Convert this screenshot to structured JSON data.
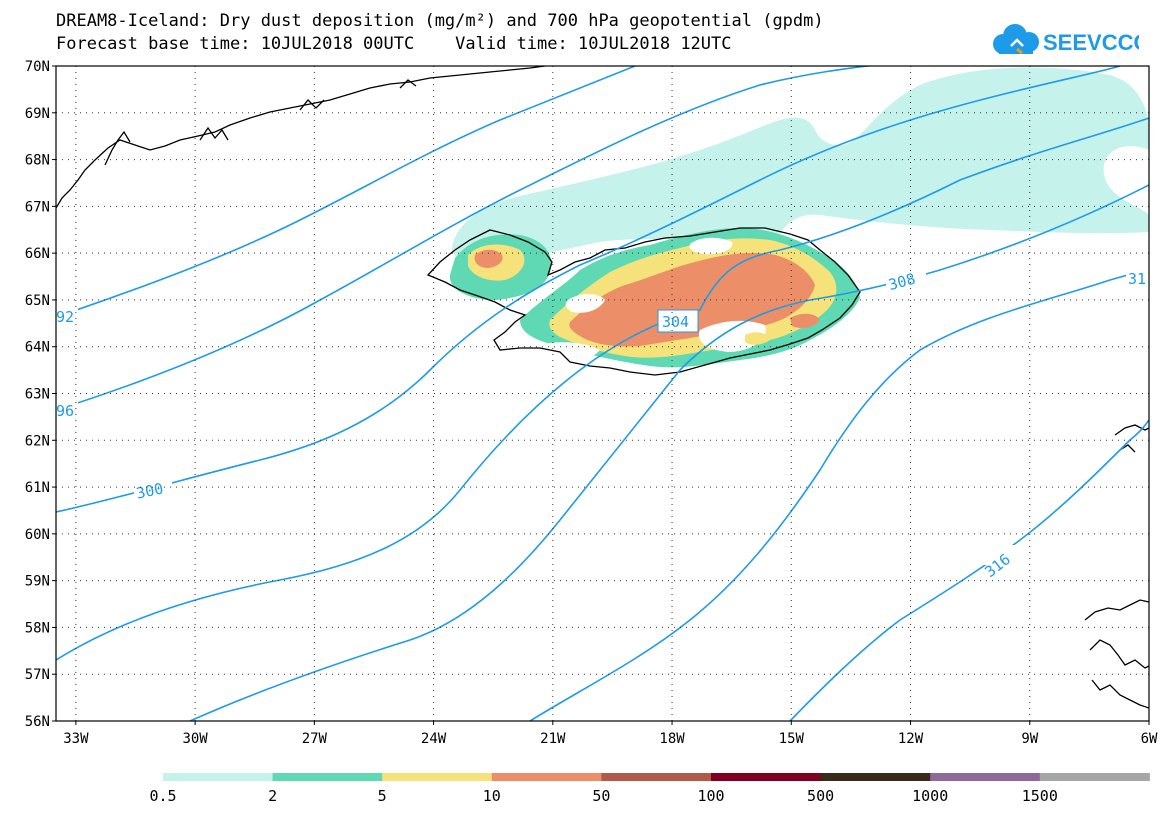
{
  "header": {
    "title_line1": "DREAM8-Iceland: Dry dust deposition (mg/m²) and 700 hPa geopotential (gpdm)",
    "title_line2": "Forecast base time: 10JUL2018 00UTC    Valid time: 10JUL2018 12UTC",
    "logo_text": "SEEVCCC"
  },
  "map": {
    "lat_range": [
      56,
      70
    ],
    "lon_range": [
      -33.5,
      -6
    ],
    "lat_labels": [
      "70N",
      "69N",
      "68N",
      "67N",
      "66N",
      "65N",
      "64N",
      "63N",
      "62N",
      "61N",
      "60N",
      "59N",
      "58N",
      "57N",
      "56N"
    ],
    "lon_labels": [
      "33W",
      "30W",
      "27W",
      "24W",
      "21W",
      "18W",
      "15W",
      "12W",
      "9W",
      "6W"
    ],
    "grid": true,
    "contour_color": "#1e9be8",
    "contour_labels": [
      "92",
      "96",
      "300",
      "304",
      "308",
      "316",
      "31"
    ]
  },
  "legend": {
    "thresholds": [
      "0.5",
      "2",
      "5",
      "10",
      "50",
      "100",
      "500",
      "1000",
      "1500"
    ],
    "colors": [
      "#c6f2ec",
      "#5ed9b3",
      "#f6e27a",
      "#ec8f68",
      "#b25a4a",
      "#800020",
      "#3a2a1a",
      "#8e6a9a",
      "#a6a6a6"
    ]
  }
}
